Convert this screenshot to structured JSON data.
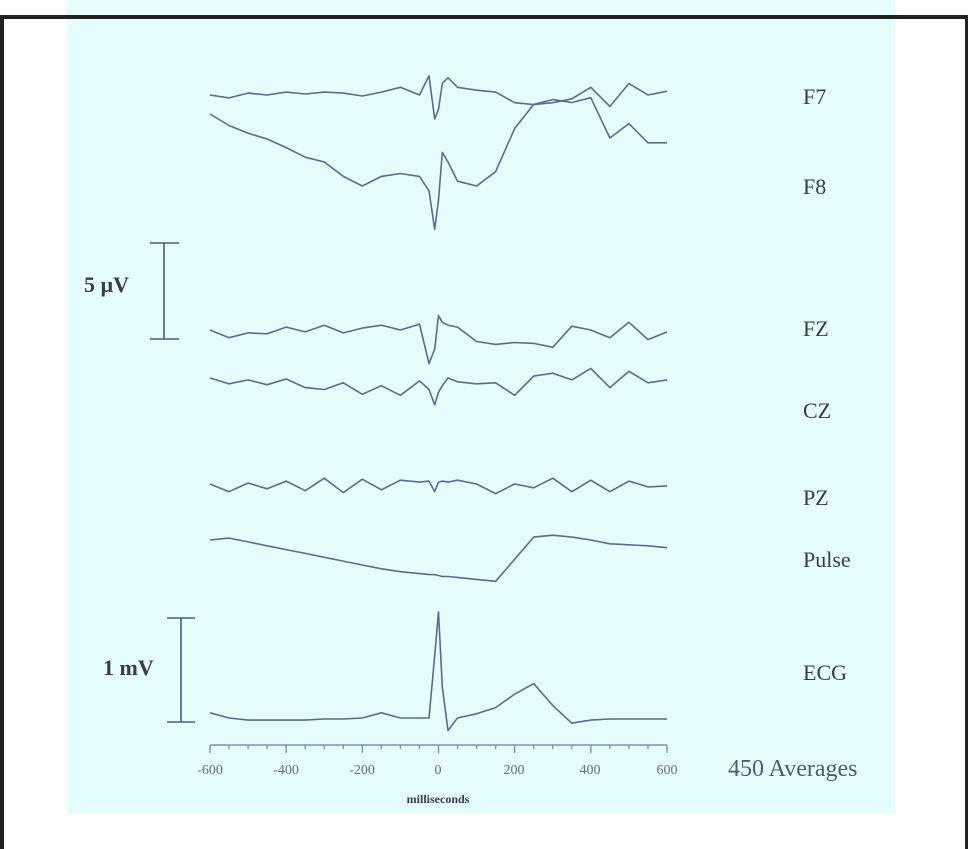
{
  "chart_data": {
    "type": "line",
    "title": "",
    "xlabel": "milliseconds",
    "ylabel": "",
    "xlim": [
      -600,
      600
    ],
    "x_ticks": [
      "-600",
      "-400",
      "-200",
      "0",
      "200",
      "400",
      "600"
    ],
    "annotation": "450 Averages",
    "scale_bars": [
      {
        "label": "5 µV",
        "applies_to": [
          "F7",
          "F8",
          "FZ",
          "CZ",
          "PZ",
          "Pulse"
        ]
      },
      {
        "label": "1 mV",
        "applies_to": [
          "ECG"
        ]
      }
    ],
    "x": [
      -600,
      -550,
      -500,
      -450,
      -400,
      -350,
      -300,
      -250,
      -200,
      -150,
      -100,
      -50,
      -25,
      -10,
      0,
      10,
      25,
      50,
      100,
      150,
      200,
      250,
      300,
      350,
      400,
      450,
      500,
      550,
      600
    ],
    "series": [
      {
        "name": "F7",
        "values": [
          0.0,
          -0.3,
          0.2,
          0.0,
          0.3,
          0.1,
          0.3,
          0.2,
          -0.1,
          0.3,
          0.8,
          0.0,
          2.0,
          -2.5,
          -1.5,
          1.2,
          1.8,
          0.8,
          0.5,
          0.3,
          -0.8,
          -1.0,
          -0.8,
          -0.4,
          0.8,
          -1.2,
          1.2,
          0.0,
          0.4
        ]
      },
      {
        "name": "F8",
        "values": [
          0.0,
          -1.2,
          -2.0,
          -2.6,
          -3.5,
          -4.5,
          -5.0,
          -6.5,
          -7.5,
          -6.5,
          -6.2,
          -6.5,
          -8.0,
          -12.0,
          -9.0,
          -4.0,
          -5.0,
          -7.0,
          -7.5,
          -6.0,
          -1.5,
          1.0,
          1.5,
          1.2,
          1.7,
          -2.5,
          -1.0,
          -3.0,
          -3.0
        ]
      },
      {
        "name": "FZ",
        "values": [
          0.0,
          -0.8,
          -0.3,
          -0.4,
          0.3,
          -0.2,
          0.5,
          -0.3,
          0.2,
          0.5,
          0.0,
          0.6,
          -3.5,
          -2.0,
          1.5,
          0.8,
          0.5,
          0.3,
          -1.2,
          -1.5,
          -1.3,
          -1.4,
          -1.8,
          0.4,
          0.0,
          -0.8,
          0.8,
          -1.0,
          -0.2
        ]
      },
      {
        "name": "CZ",
        "values": [
          0.0,
          -0.6,
          -0.2,
          -0.7,
          -0.1,
          -1.0,
          -1.2,
          -0.5,
          -1.7,
          -0.8,
          -1.8,
          -0.3,
          -1.2,
          -2.8,
          -1.5,
          -0.8,
          0.0,
          -0.4,
          -0.6,
          -0.5,
          -1.8,
          0.2,
          0.5,
          -0.2,
          1.0,
          -1.0,
          0.7,
          -0.5,
          -0.2
        ]
      },
      {
        "name": "PZ",
        "values": [
          0.0,
          -0.8,
          0.1,
          -0.5,
          0.3,
          -0.7,
          0.6,
          -0.9,
          0.5,
          -0.6,
          0.4,
          0.2,
          0.3,
          -0.8,
          0.2,
          0.3,
          0.2,
          0.4,
          0.0,
          -1.0,
          0.0,
          -0.4,
          0.6,
          -0.8,
          0.4,
          -0.8,
          0.3,
          -0.3,
          -0.2
        ]
      },
      {
        "name": "Pulse",
        "values": [
          0.0,
          0.2,
          -0.2,
          -0.6,
          -1.0,
          -1.4,
          -1.8,
          -2.2,
          -2.6,
          -3.0,
          -3.3,
          -3.5,
          -3.6,
          -3.6,
          -3.7,
          -3.8,
          -3.8,
          -3.9,
          -4.1,
          -4.3,
          -2.0,
          0.3,
          0.5,
          0.3,
          0.0,
          -0.4,
          -0.5,
          -0.6,
          -0.8
        ]
      },
      {
        "name": "ECG",
        "values": [
          0.05,
          0.0,
          -0.02,
          -0.02,
          -0.02,
          -0.02,
          -0.01,
          -0.01,
          0.0,
          0.05,
          0.0,
          0.0,
          0.0,
          0.6,
          1.02,
          0.3,
          -0.12,
          0.0,
          0.04,
          0.1,
          0.23,
          0.33,
          0.12,
          -0.05,
          -0.02,
          -0.01,
          -0.01,
          -0.01,
          -0.01
        ]
      }
    ]
  },
  "labels": {
    "channels": [
      "F7",
      "F8",
      "FZ",
      "CZ",
      "PZ",
      "Pulse",
      "ECG"
    ],
    "scale_uv": "5 µV",
    "scale_mv": "1 mV",
    "xlabel": "milliseconds",
    "averages": "450 Averages",
    "ticks": [
      "-600",
      "-400",
      "-200",
      "0",
      "200",
      "400",
      "600"
    ]
  },
  "colors": {
    "panel_background": "#e6fdfd",
    "trace": "#5a6a96",
    "axis": "#7f8fbf",
    "frame": "#222222"
  }
}
